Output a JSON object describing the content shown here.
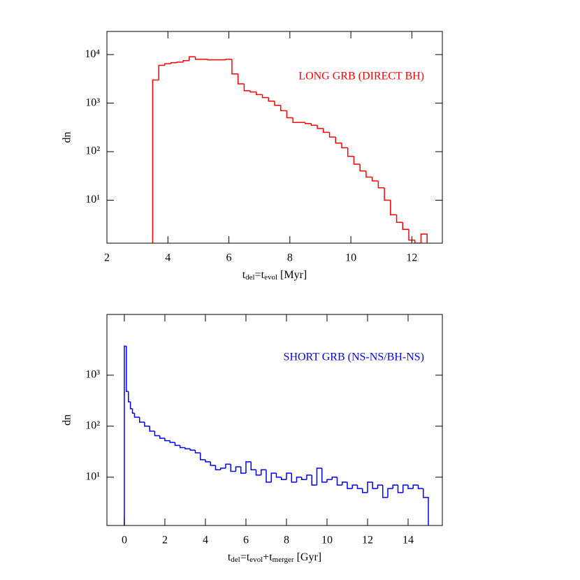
{
  "chart_data": [
    {
      "type": "histogram",
      "color": "#ff0000",
      "log_y": true,
      "annotation": "LONG GRB (DIRECT BH)",
      "ylabel": "dn",
      "xlabel": [
        {
          "text": "t"
        },
        {
          "text": "del",
          "sub": true
        },
        {
          "text": "=t"
        },
        {
          "text": "evol",
          "sub": true
        },
        {
          "text": " [Myr]"
        }
      ],
      "xlim": [
        2,
        13
      ],
      "xticks": [
        2,
        4,
        6,
        8,
        10,
        12
      ],
      "ylim": [
        1.3,
        30000
      ],
      "yticks": [
        {
          "value": 10,
          "label": "10¹"
        },
        {
          "value": 100,
          "label": "10²"
        },
        {
          "value": 1000,
          "label": "10³"
        },
        {
          "value": 10000,
          "label": "10⁴"
        }
      ],
      "bins": [
        3.5,
        3.7,
        3.9,
        4.1,
        4.3,
        4.5,
        4.7,
        4.9,
        5.1,
        5.3,
        5.5,
        5.7,
        5.9,
        6.1,
        6.3,
        6.5,
        6.7,
        6.9,
        7.1,
        7.3,
        7.5,
        7.7,
        7.9,
        8.1,
        8.3,
        8.5,
        8.7,
        8.9,
        9.1,
        9.3,
        9.5,
        9.7,
        9.9,
        10.1,
        10.3,
        10.5,
        10.7,
        10.9,
        11.1,
        11.3,
        11.5,
        11.7,
        11.9,
        12.1,
        12.3,
        12.5
      ],
      "values": [
        3000,
        6000,
        6500,
        6800,
        7000,
        7500,
        9000,
        8000,
        8000,
        7800,
        7800,
        7800,
        8000,
        4000,
        2500,
        1800,
        1700,
        1500,
        1300,
        1100,
        900,
        700,
        500,
        400,
        400,
        380,
        350,
        300,
        250,
        200,
        150,
        120,
        80,
        55,
        40,
        30,
        25,
        18,
        10,
        5,
        3.5,
        2.5,
        1.5,
        0,
        2
      ]
    },
    {
      "type": "histogram",
      "color": "#0000ff",
      "log_y": true,
      "annotation": "SHORT GRB (NS-NS/BH-NS)",
      "ylabel": "dn",
      "xlabel": [
        {
          "text": "t"
        },
        {
          "text": "del",
          "sub": true
        },
        {
          "text": "=t"
        },
        {
          "text": "evol",
          "sub": true
        },
        {
          "text": "+t"
        },
        {
          "text": "merger",
          "sub": true
        },
        {
          "text": " [Gyr]"
        }
      ],
      "xlim": [
        -0.86,
        15.69
      ],
      "xticks": [
        0,
        2,
        4,
        6,
        8,
        10,
        12,
        14
      ],
      "ylim": [
        1.13,
        15500
      ],
      "yticks": [
        {
          "value": 10,
          "label": "10¹"
        },
        {
          "value": 100,
          "label": "10²"
        },
        {
          "value": 1000,
          "label": "10³"
        }
      ],
      "bins": [
        0,
        0.1,
        0.2,
        0.3,
        0.4,
        0.5,
        0.75,
        1,
        1.25,
        1.5,
        1.75,
        2,
        2.25,
        2.5,
        2.75,
        3,
        3.25,
        3.5,
        3.75,
        4,
        4.25,
        4.5,
        4.75,
        5,
        5.25,
        5.5,
        5.75,
        6,
        6.25,
        6.5,
        6.75,
        7,
        7.25,
        7.5,
        7.75,
        8,
        8.25,
        8.5,
        8.75,
        9,
        9.25,
        9.5,
        9.75,
        10,
        10.25,
        10.5,
        10.75,
        11,
        11.25,
        11.5,
        11.75,
        12,
        12.25,
        12.5,
        12.75,
        13,
        13.25,
        13.5,
        13.75,
        14,
        14.25,
        14.5,
        14.75,
        15
      ],
      "values": [
        3700,
        480,
        300,
        220,
        180,
        150,
        120,
        100,
        80,
        65,
        58,
        52,
        48,
        42,
        38,
        36,
        34,
        30,
        22,
        20,
        17,
        14,
        15,
        18,
        13,
        16,
        12,
        20,
        14,
        11,
        14,
        8,
        12,
        10,
        9,
        12,
        8,
        10,
        9,
        11,
        7,
        15,
        8,
        9,
        10,
        7,
        8,
        6,
        7,
        6,
        5,
        8,
        6,
        7,
        4,
        6,
        7,
        5,
        7,
        6,
        7,
        6,
        4
      ]
    }
  ]
}
